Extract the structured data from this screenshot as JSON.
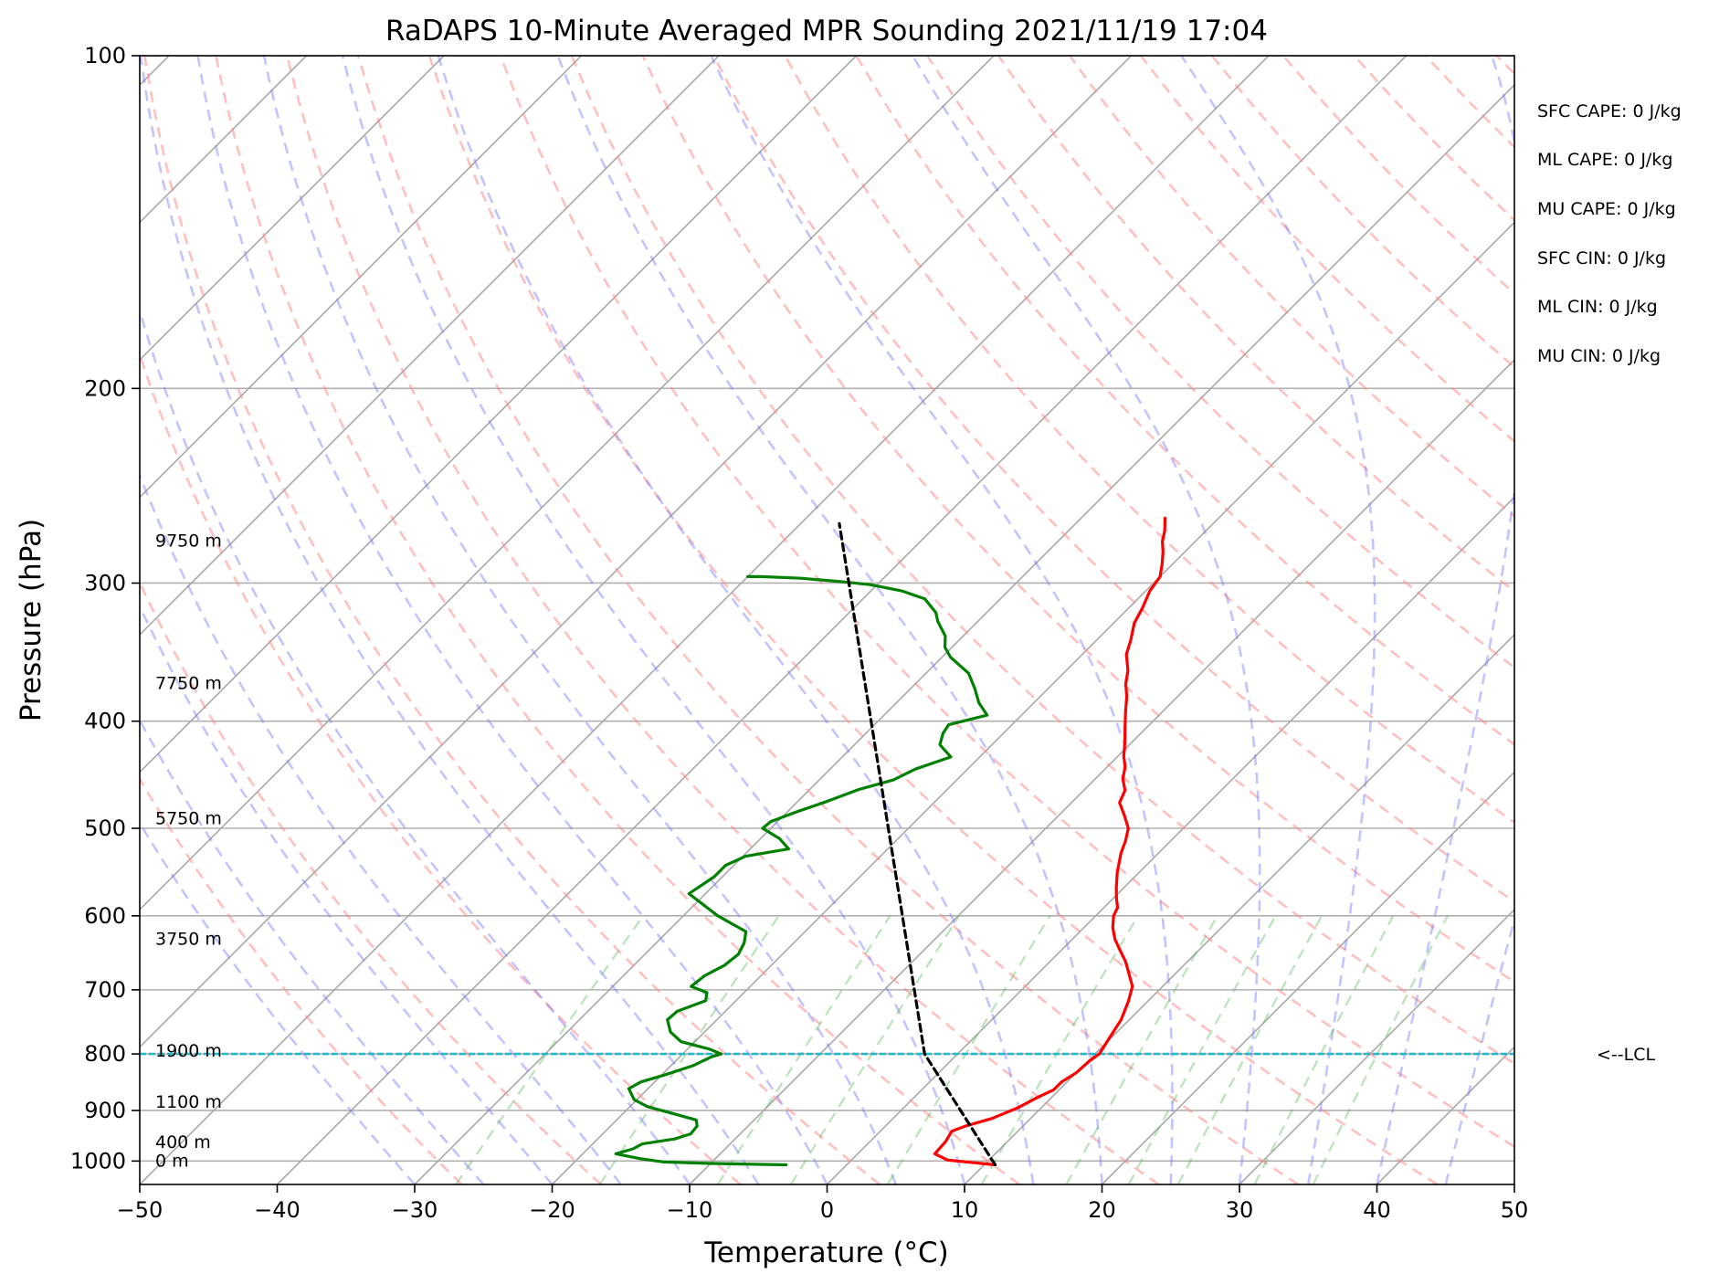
{
  "chart_data": {
    "type": "line",
    "title": "RaDAPS 10-Minute Averaged MPR Sounding 2021/11/19 17:04",
    "xlabel": "Temperature (°C)",
    "ylabel": "Pressure (hPa)",
    "xlim": [
      -50,
      50
    ],
    "ylim": [
      1050,
      100
    ],
    "y_scale": "log",
    "skew_t": true,
    "grid": true,
    "x_ticks": [
      -50,
      -40,
      -30,
      -20,
      -10,
      0,
      10,
      20,
      30,
      40,
      50
    ],
    "x_tick_labels": [
      "−50",
      "−40",
      "−30",
      "−20",
      "−10",
      "0",
      "10",
      "20",
      "30",
      "40",
      "50"
    ],
    "y_ticks": [
      100,
      200,
      300,
      400,
      500,
      600,
      700,
      800,
      900,
      1000
    ],
    "y_tick_labels": [
      "100",
      "200",
      "300",
      "400",
      "500",
      "600",
      "700",
      "800",
      "900",
      "1000"
    ],
    "height_labels": [
      {
        "text": "9750 m",
        "p": 275
      },
      {
        "text": "7750 m",
        "p": 370
      },
      {
        "text": "5750 m",
        "p": 490
      },
      {
        "text": "3750 m",
        "p": 630
      },
      {
        "text": "1900 m",
        "p": 795
      },
      {
        "text": "1100 m",
        "p": 885
      },
      {
        "text": "400 m",
        "p": 962
      },
      {
        "text": "0 m",
        "p": 1000
      }
    ],
    "indices": [
      "SFC CAPE: 0 J/kg",
      "ML CAPE: 0 J/kg",
      "MU CAPE: 0 J/kg",
      "SFC CIN: 0 J/kg",
      "ML CIN: 0 J/kg",
      "MU CIN: 0 J/kg"
    ],
    "lcl": {
      "label": "<--LCL",
      "p": 800,
      "color": "#17becf"
    },
    "series": [
      {
        "color": "#ff0000",
        "points": [
          [
            10.8,
            1008
          ],
          [
            7,
            998
          ],
          [
            5.6,
            985
          ],
          [
            5.5,
            960
          ],
          [
            5.2,
            940
          ],
          [
            5.8,
            930
          ],
          [
            7.2,
            915
          ],
          [
            8.3,
            895
          ],
          [
            9.0,
            875
          ],
          [
            9.6,
            862
          ],
          [
            9.6,
            848
          ],
          [
            10.0,
            832
          ],
          [
            10.1,
            812
          ],
          [
            10.3,
            800
          ],
          [
            9.9,
            775
          ],
          [
            9.4,
            745
          ],
          [
            8.6,
            717
          ],
          [
            7.8,
            695
          ],
          [
            6.5,
            675
          ],
          [
            5.5,
            660
          ],
          [
            4.3,
            645
          ],
          [
            3.1,
            630
          ],
          [
            2.1,
            615
          ],
          [
            1.3,
            600
          ],
          [
            1.0,
            590
          ],
          [
            0.2,
            578
          ],
          [
            -0.6,
            565
          ],
          [
            -1.6,
            548
          ],
          [
            -2.7,
            527
          ],
          [
            -3.3,
            513
          ],
          [
            -4.0,
            500
          ],
          [
            -5.2,
            487
          ],
          [
            -6.5,
            474
          ],
          [
            -7.0,
            462
          ],
          [
            -8.0,
            451
          ],
          [
            -8.7,
            440
          ],
          [
            -9.6,
            430
          ],
          [
            -10.5,
            418
          ],
          [
            -11.6,
            405
          ],
          [
            -12.7,
            392
          ],
          [
            -13.7,
            380
          ],
          [
            -14.7,
            370
          ],
          [
            -15.5,
            360
          ],
          [
            -16.8,
            348
          ],
          [
            -17.5,
            338
          ],
          [
            -18.5,
            326
          ],
          [
            -19.0,
            316
          ],
          [
            -19.7,
            305
          ],
          [
            -20.0,
            296
          ],
          [
            -20.8,
            288
          ],
          [
            -21.6,
            281
          ],
          [
            -22.4,
            275
          ],
          [
            -23.0,
            269
          ],
          [
            -23.9,
            262
          ]
        ]
      },
      {
        "color": "#008000",
        "points": [
          [
            -4.4,
            1008
          ],
          [
            -10,
            1005
          ],
          [
            -13.5,
            1002
          ],
          [
            -15.5,
            995
          ],
          [
            -17.6,
            985
          ],
          [
            -16.7,
            975
          ],
          [
            -16.4,
            965
          ],
          [
            -14.4,
            955
          ],
          [
            -13.6,
            945
          ],
          [
            -13.7,
            930
          ],
          [
            -14.2,
            918
          ],
          [
            -16.5,
            905
          ],
          [
            -18.7,
            893
          ],
          [
            -20.2,
            880
          ],
          [
            -21.4,
            860
          ],
          [
            -21.0,
            848
          ],
          [
            -19.8,
            836
          ],
          [
            -18.4,
            820
          ],
          [
            -17.7,
            805
          ],
          [
            -17.2,
            800
          ],
          [
            -18.4,
            792
          ],
          [
            -21.0,
            780
          ],
          [
            -22.5,
            764
          ],
          [
            -23.6,
            745
          ],
          [
            -23.5,
            732
          ],
          [
            -22.2,
            716
          ],
          [
            -22.7,
            704
          ],
          [
            -24.3,
            695
          ],
          [
            -24.1,
            680
          ],
          [
            -23.4,
            665
          ],
          [
            -23.2,
            650
          ],
          [
            -23.6,
            635
          ],
          [
            -24.3,
            620
          ],
          [
            -27.5,
            600
          ],
          [
            -31.2,
            573
          ],
          [
            -30.6,
            553
          ],
          [
            -30.6,
            540
          ],
          [
            -29.8,
            530
          ],
          [
            -27.2,
            522
          ],
          [
            -28.6,
            511
          ],
          [
            -30.6,
            500
          ],
          [
            -30.5,
            493
          ],
          [
            -29.3,
            483
          ],
          [
            -27.9,
            473
          ],
          [
            -26.4,
            461
          ],
          [
            -24.6,
            452
          ],
          [
            -23.8,
            442
          ],
          [
            -22.1,
            431
          ],
          [
            -23.8,
            420
          ],
          [
            -24.4,
            410
          ],
          [
            -24.6,
            403
          ],
          [
            -22.5,
            395
          ],
          [
            -24.0,
            385
          ],
          [
            -25.3,
            374
          ],
          [
            -26.9,
            362
          ],
          [
            -29.4,
            350
          ],
          [
            -30.5,
            343
          ],
          [
            -31.3,
            335
          ],
          [
            -32.9,
            325
          ],
          [
            -33.7,
            319
          ],
          [
            -35.5,
            310
          ],
          [
            -37.7,
            305
          ],
          [
            -40.5,
            301
          ],
          [
            -43.0,
            299
          ],
          [
            -46.0,
            297
          ],
          [
            -49.0,
            296
          ],
          [
            -50.0,
            296
          ]
        ]
      },
      {
        "color": "#000000",
        "dashed": true,
        "points": [
          [
            10.8,
            1008
          ],
          [
            -2.4,
            800
          ],
          [
            -47.2,
            265
          ]
        ]
      }
    ]
  }
}
